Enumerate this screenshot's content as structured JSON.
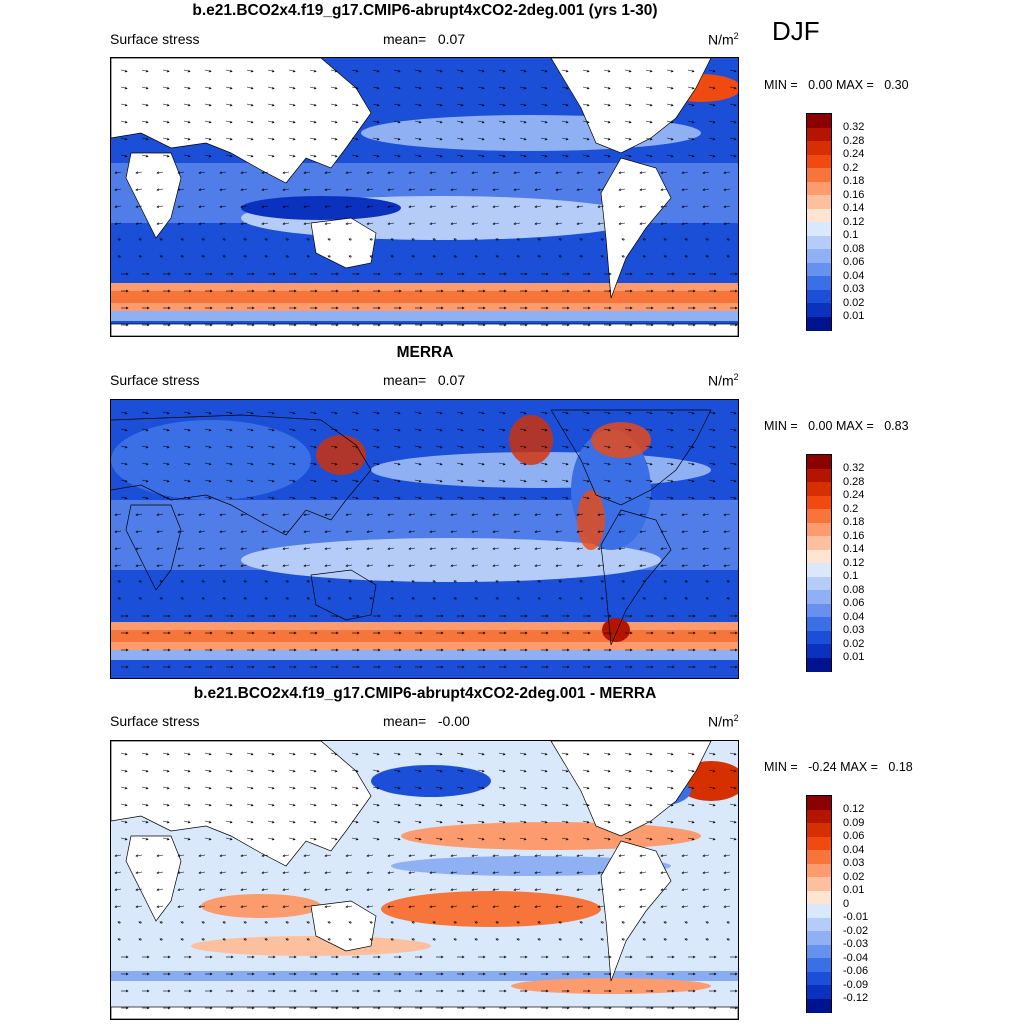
{
  "season": "DJF",
  "panels": [
    {
      "title": "b.e21.BCO2x4.f19_g17.CMIP6-abrupt4xCO2-2deg.001 (yrs 1-30)",
      "variable": "Surface stress",
      "mean_label": "mean=",
      "mean_value": "0.07",
      "units": "N/m",
      "units_exp": "2",
      "min_label": "MIN =",
      "min_value": "0.00",
      "max_label": "MAX =",
      "max_value": "0.30",
      "colorbar": {
        "levels": [
          "0.32",
          "0.28",
          "0.24",
          "0.2",
          "0.18",
          "0.16",
          "0.14",
          "0.12",
          "0.1",
          "0.08",
          "0.06",
          "0.04",
          "0.03",
          "0.02",
          "0.01"
        ],
        "colors": [
          "#8b0000",
          "#b31500",
          "#d63000",
          "#f04a10",
          "#f7743a",
          "#fb9b6e",
          "#fdc09e",
          "#fde5d2",
          "#d9e8fb",
          "#b4ccf7",
          "#8fb0f3",
          "#6691ee",
          "#3b6fe6",
          "#1b4fd8",
          "#0b32bf",
          "#00138f"
        ]
      }
    },
    {
      "title": "MERRA",
      "variable": "Surface stress",
      "mean_label": "mean=",
      "mean_value": "0.07",
      "units": "N/m",
      "units_exp": "2",
      "min_label": "MIN =",
      "min_value": "0.00",
      "max_label": "MAX =",
      "max_value": "0.83",
      "colorbar": {
        "levels": [
          "0.32",
          "0.28",
          "0.24",
          "0.2",
          "0.18",
          "0.16",
          "0.14",
          "0.12",
          "0.1",
          "0.08",
          "0.06",
          "0.04",
          "0.03",
          "0.02",
          "0.01"
        ],
        "colors": [
          "#8b0000",
          "#b31500",
          "#d63000",
          "#f04a10",
          "#f7743a",
          "#fb9b6e",
          "#fdc09e",
          "#fde5d2",
          "#d9e8fb",
          "#b4ccf7",
          "#8fb0f3",
          "#6691ee",
          "#3b6fe6",
          "#1b4fd8",
          "#0b32bf",
          "#00138f"
        ]
      }
    },
    {
      "title": "b.e21.BCO2x4.f19_g17.CMIP6-abrupt4xCO2-2deg.001 - MERRA",
      "variable": "Surface stress",
      "mean_label": "mean=",
      "mean_value": "-0.00",
      "units": "N/m",
      "units_exp": "2",
      "min_label": "MIN =",
      "min_value": "-0.24",
      "max_label": "MAX =",
      "max_value": "0.18",
      "colorbar": {
        "levels": [
          "0.12",
          "0.09",
          "0.06",
          "0.04",
          "0.03",
          "0.02",
          "0.01",
          "0",
          "-0.01",
          "-0.02",
          "-0.03",
          "-0.04",
          "-0.06",
          "-0.09",
          "-0.12"
        ],
        "colors": [
          "#8b0000",
          "#b31500",
          "#d63000",
          "#f04a10",
          "#f7743a",
          "#fb9b6e",
          "#fdc09e",
          "#fde5d2",
          "#d9e8fb",
          "#b4ccf7",
          "#8fb0f3",
          "#6691ee",
          "#3b6fe6",
          "#1b4fd8",
          "#0b32bf",
          "#00138f"
        ]
      }
    }
  ]
}
